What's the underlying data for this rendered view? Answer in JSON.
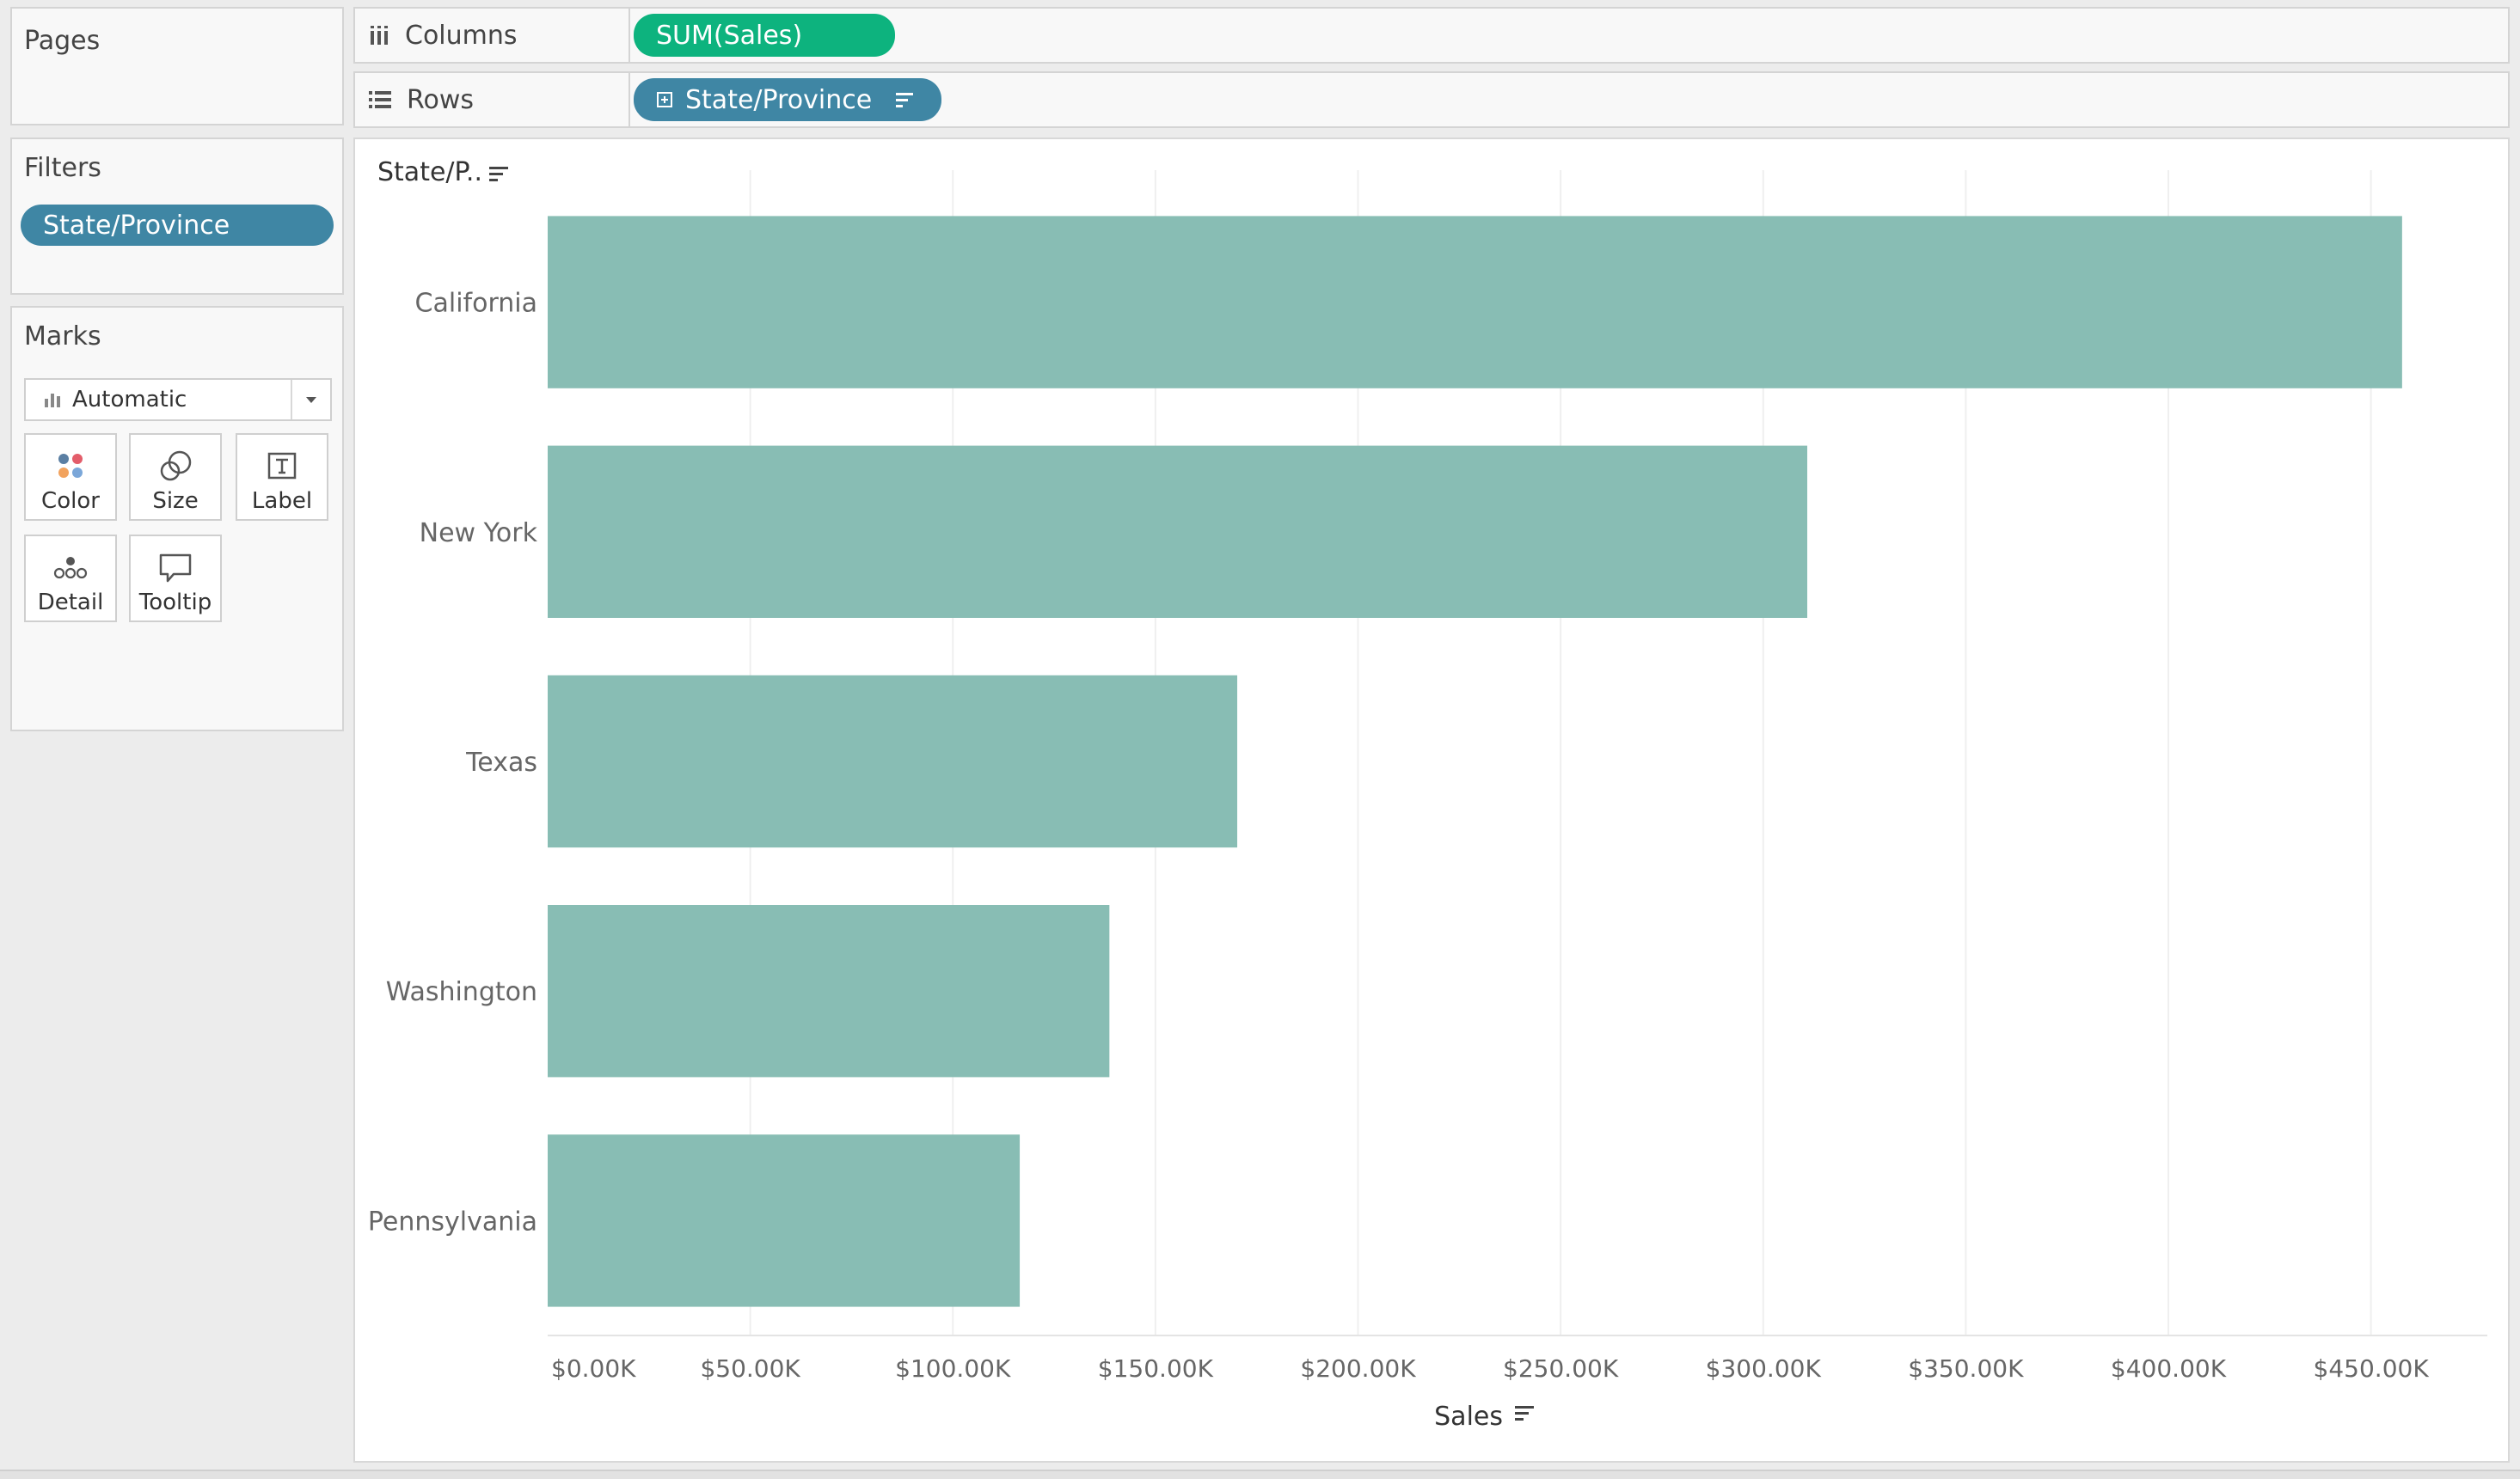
{
  "pages": {
    "title": "Pages"
  },
  "filters": {
    "title": "Filters",
    "pills": [
      "State/Province"
    ]
  },
  "marks": {
    "title": "Marks",
    "mark_type": "Automatic",
    "buttons": [
      "Color",
      "Size",
      "Label",
      "Detail",
      "Tooltip"
    ]
  },
  "shelves": {
    "columns": {
      "label": "Columns",
      "pill": "SUM(Sales)"
    },
    "rows": {
      "label": "Rows",
      "pill": "State/Province"
    }
  },
  "colors": {
    "bar": "#88bdb4",
    "dimension_pill": "#3f86a4",
    "measure_pill": "#0db37e"
  },
  "chart_data": {
    "type": "bar",
    "orientation": "horizontal",
    "row_header": "State/P..",
    "categories": [
      "California",
      "New York",
      "Texas",
      "Washington",
      "Pennsylvania"
    ],
    "values": [
      457690,
      310880,
      170190,
      138640,
      116510
    ],
    "xlabel": "Sales",
    "xlim": [
      0,
      480000
    ],
    "x_ticks": [
      0,
      50000,
      100000,
      150000,
      200000,
      250000,
      300000,
      350000,
      400000,
      450000
    ],
    "x_tick_labels": [
      "$0.00K",
      "$50.00K",
      "$100.00K",
      "$150.00K",
      "$200.00K",
      "$250.00K",
      "$300.00K",
      "$350.00K",
      "$400.00K",
      "$450.00K"
    ],
    "grid": true,
    "sorted": "descending"
  }
}
